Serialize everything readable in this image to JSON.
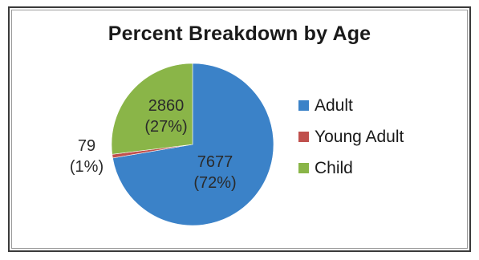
{
  "chart_data": {
    "type": "pie",
    "title": "Percent Breakdown by Age",
    "slices": [
      {
        "name": "Adult",
        "value": 7677,
        "percent_label": "(72%)",
        "color": "#3b82c8"
      },
      {
        "name": "Young Adult",
        "value": 79,
        "percent_label": "(1%)",
        "color": "#c0504d"
      },
      {
        "name": "Child",
        "value": 2860,
        "percent_label": "(27%)",
        "color": "#8ab548"
      }
    ],
    "legend_position": "right"
  }
}
